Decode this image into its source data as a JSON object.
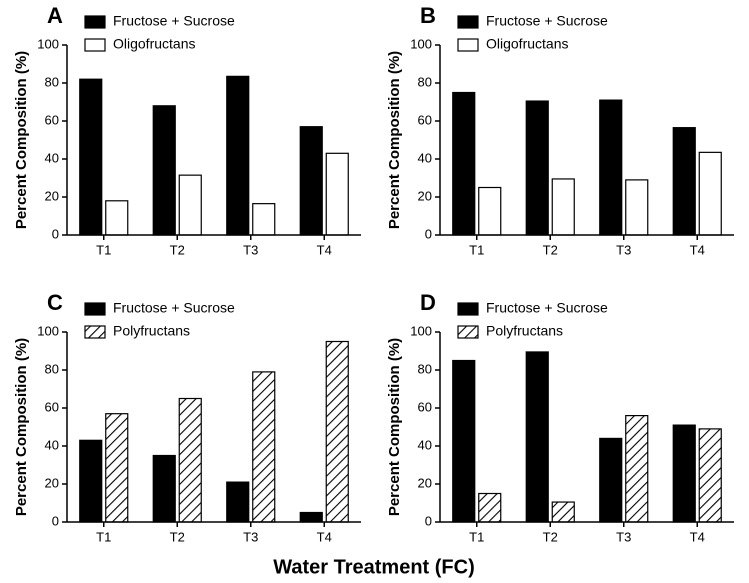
{
  "figure": {
    "xlabel": "Water Treatment (FC)"
  },
  "chart_data": [
    {
      "type": "bar",
      "panel": "A",
      "ylabel": "Percent Composition (%)",
      "categories": [
        "T1",
        "T2",
        "T3",
        "T4"
      ],
      "series": [
        {
          "name": "Fructose + Sucrose",
          "color": "#000000",
          "pattern": "solid",
          "values": [
            82,
            68,
            83.5,
            57
          ]
        },
        {
          "name": "Oligofructans",
          "color": "#ffffff",
          "pattern": "solid",
          "values": [
            18,
            31.5,
            16.5,
            43
          ]
        }
      ],
      "ylim": [
        0,
        100
      ],
      "yticks": [
        0,
        20,
        40,
        60,
        80,
        100
      ]
    },
    {
      "type": "bar",
      "panel": "B",
      "ylabel": "Percent Composition (%)",
      "categories": [
        "T1",
        "T2",
        "T3",
        "T4"
      ],
      "series": [
        {
          "name": "Fructose + Sucrose",
          "color": "#000000",
          "pattern": "solid",
          "values": [
            75,
            70.5,
            71,
            56.5
          ]
        },
        {
          "name": "Oligofructans",
          "color": "#ffffff",
          "pattern": "solid",
          "values": [
            25,
            29.5,
            29,
            43.5
          ]
        }
      ],
      "ylim": [
        0,
        100
      ],
      "yticks": [
        0,
        20,
        40,
        60,
        80,
        100
      ]
    },
    {
      "type": "bar",
      "panel": "C",
      "ylabel": "Percent Composition (%)",
      "categories": [
        "T1",
        "T2",
        "T3",
        "T4"
      ],
      "series": [
        {
          "name": "Fructose + Sucrose",
          "color": "#000000",
          "pattern": "solid",
          "values": [
            43,
            35,
            21,
            5
          ]
        },
        {
          "name": "Polyfructans",
          "color": "#ffffff",
          "pattern": "hatch",
          "values": [
            57,
            65,
            79,
            95
          ]
        }
      ],
      "ylim": [
        0,
        100
      ],
      "yticks": [
        0,
        20,
        40,
        60,
        80,
        100
      ]
    },
    {
      "type": "bar",
      "panel": "D",
      "ylabel": "Percent Composition (%)",
      "categories": [
        "T1",
        "T2",
        "T3",
        "T4"
      ],
      "series": [
        {
          "name": "Fructose + Sucrose",
          "color": "#000000",
          "pattern": "solid",
          "values": [
            85,
            89.5,
            44,
            51
          ]
        },
        {
          "name": "Polyfructans",
          "color": "#ffffff",
          "pattern": "hatch",
          "values": [
            15,
            10.5,
            56,
            49
          ]
        }
      ],
      "ylim": [
        0,
        100
      ],
      "yticks": [
        0,
        20,
        40,
        60,
        80,
        100
      ]
    }
  ]
}
